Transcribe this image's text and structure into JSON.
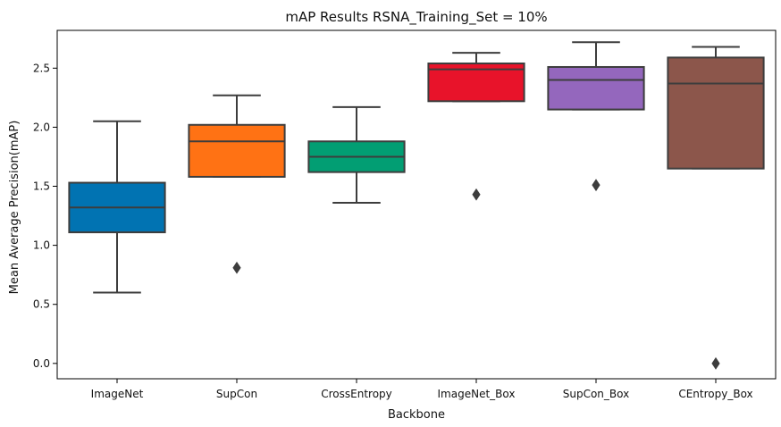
{
  "chart_data": {
    "type": "box",
    "title": "mAP Results RSNA_Training_Set = 10%",
    "xlabel": "Backbone",
    "ylabel": "Mean Average Precision(mAP)",
    "ylim": [
      -0.13,
      2.82
    ],
    "yticks": [
      0.0,
      0.5,
      1.0,
      1.5,
      2.0,
      2.5
    ],
    "ytick_labels": [
      "0.0",
      "0.5",
      "1.0",
      "1.5",
      "2.0",
      "2.5"
    ],
    "grid": false,
    "categories": [
      "ImageNet",
      "SupCon",
      "CrossEntropy",
      "ImageNet_Box",
      "SupCon_Box",
      "CEntropy_Box"
    ],
    "colors": [
      "#0173b2",
      "#ff7214",
      "#029e73",
      "#e8132a",
      "#9467bd",
      "#8c564b"
    ],
    "boxes": [
      {
        "whisker_low": 0.6,
        "q1": 1.11,
        "median": 1.32,
        "q3": 1.53,
        "whisker_high": 2.05,
        "outliers": []
      },
      {
        "whisker_low": 1.58,
        "q1": 1.58,
        "median": 1.88,
        "q3": 2.02,
        "whisker_high": 2.27,
        "outliers": [
          0.81
        ]
      },
      {
        "whisker_low": 1.36,
        "q1": 1.62,
        "median": 1.75,
        "q3": 1.88,
        "whisker_high": 2.17,
        "outliers": []
      },
      {
        "whisker_low": 2.22,
        "q1": 2.22,
        "median": 2.49,
        "q3": 2.54,
        "whisker_high": 2.63,
        "outliers": [
          1.43
        ]
      },
      {
        "whisker_low": 2.15,
        "q1": 2.15,
        "median": 2.4,
        "q3": 2.51,
        "whisker_high": 2.72,
        "outliers": [
          1.51
        ]
      },
      {
        "whisker_low": 1.65,
        "q1": 1.65,
        "median": 2.37,
        "q3": 2.59,
        "whisker_high": 2.68,
        "outliers": [
          0.0
        ]
      }
    ]
  }
}
